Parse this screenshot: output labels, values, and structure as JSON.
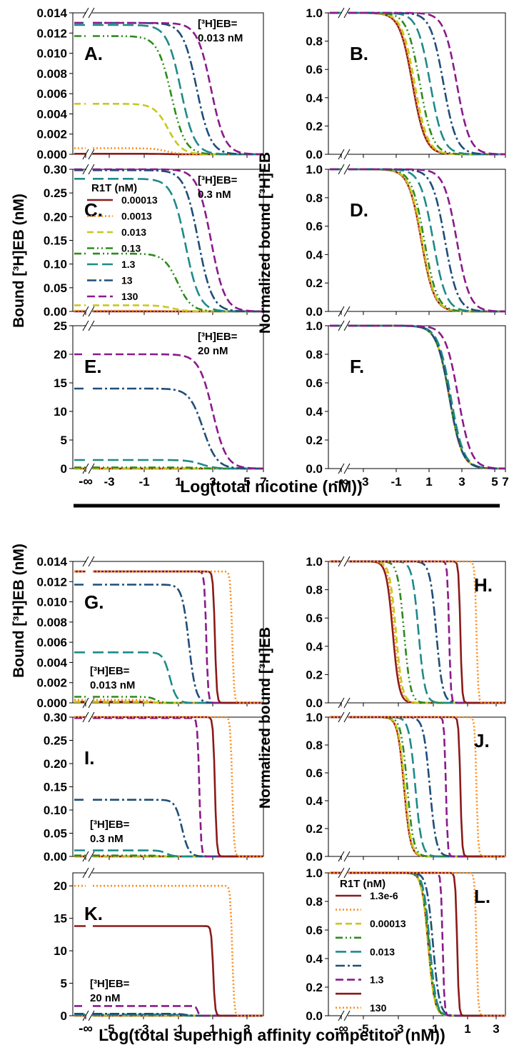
{
  "axis_labels": {
    "top_x": "Log(total nicotine (nM))",
    "bottom_x": "Log(total superhigh affinity competitor (nM))",
    "y_left": "Bound [³H]EB (nM)",
    "y_right": "Normalized bound [³H]EB"
  },
  "legend_top": {
    "title": "R1T (nM)",
    "entries": [
      "0.00013",
      "0.0013",
      "0.013",
      "0.13",
      "1.3",
      "13",
      "130"
    ]
  },
  "legend_bottom": {
    "title": "R1T (nM)",
    "entries": [
      "1.3e-6",
      "",
      "0.00013",
      "",
      "0.013",
      "",
      "1.3",
      "",
      "130"
    ]
  },
  "series_colors": {
    "top": [
      "#8b1a1a",
      "#ff8c1a",
      "#c8c81e",
      "#2e8b1e",
      "#1f8a8a",
      "#1f4e79",
      "#8b1a8b"
    ],
    "bottom": [
      "#8b1a1a",
      "#ff8c1a",
      "#c8c81e",
      "#2e8b1e",
      "#1f8a8a",
      "#1f4e79",
      "#8b1a8b",
      "#8b1a1a",
      "#ff8c1a"
    ]
  },
  "chart_data": [
    {
      "panel": "A.",
      "type": "line",
      "ylim": [
        0,
        0.014
      ],
      "yticks": [
        "0.000",
        "0.002",
        "0.004",
        "0.006",
        "0.008",
        "0.010",
        "0.012",
        "0.014"
      ],
      "xticks": [
        "-∞",
        "-3",
        "-1",
        "1",
        "3",
        "5",
        "7"
      ],
      "annotation": [
        "[³H]EB=",
        "0.013 nM"
      ],
      "series_params": [
        {
          "plateau": 5e-05,
          "ic50_log": 0.8
        },
        {
          "plateau": 0.0006,
          "ic50_log": 0.9
        },
        {
          "plateau": 0.005,
          "ic50_log": 1.0
        },
        {
          "plateau": 0.0117,
          "ic50_log": 1.2
        },
        {
          "plateau": 0.0128,
          "ic50_log": 1.8
        },
        {
          "plateau": 0.013,
          "ic50_log": 2.8
        },
        {
          "plateau": 0.013,
          "ic50_log": 3.7
        }
      ]
    },
    {
      "panel": "B.",
      "type": "line",
      "ylim": [
        0,
        1
      ],
      "yticks": [
        "0.0",
        "0.2",
        "0.4",
        "0.6",
        "0.8",
        "1.0"
      ],
      "xticks": [
        "-∞",
        "-3",
        "-1",
        "1",
        "3",
        "5",
        "7"
      ],
      "series_params": [
        {
          "plateau": 1,
          "ic50_log": 0.7
        },
        {
          "plateau": 1,
          "ic50_log": 0.75
        },
        {
          "plateau": 1,
          "ic50_log": 0.85
        },
        {
          "plateau": 1,
          "ic50_log": 1.2
        },
        {
          "plateau": 1,
          "ic50_log": 1.9
        },
        {
          "plateau": 1,
          "ic50_log": 2.8
        },
        {
          "plateau": 1,
          "ic50_log": 3.7
        }
      ]
    },
    {
      "panel": "C.",
      "type": "line",
      "ylim": [
        0,
        0.3
      ],
      "yticks": [
        "0.00",
        "0.05",
        "0.10",
        "0.15",
        "0.20",
        "0.25",
        "0.30"
      ],
      "xticks": [
        "-∞",
        "-3",
        "-1",
        "1",
        "3",
        "5",
        "7"
      ],
      "annotation": [
        "[³H]EB=",
        "0.3 nM"
      ],
      "series_params": [
        {
          "plateau": 0.0001,
          "ic50_log": 1.2
        },
        {
          "plateau": 0.0013,
          "ic50_log": 1.2
        },
        {
          "plateau": 0.013,
          "ic50_log": 1.3
        },
        {
          "plateau": 0.122,
          "ic50_log": 1.6
        },
        {
          "plateau": 0.28,
          "ic50_log": 2.1
        },
        {
          "plateau": 0.298,
          "ic50_log": 2.9
        },
        {
          "plateau": 0.3,
          "ic50_log": 3.7
        }
      ]
    },
    {
      "panel": "D.",
      "type": "line",
      "ylim": [
        0,
        1
      ],
      "yticks": [
        "0.0",
        "0.2",
        "0.4",
        "0.6",
        "0.8",
        "1.0"
      ],
      "xticks": [
        "-∞",
        "-3",
        "-1",
        "1",
        "3",
        "5",
        "7"
      ],
      "series_params": [
        {
          "plateau": 1,
          "ic50_log": 1.3
        },
        {
          "plateau": 1,
          "ic50_log": 1.3
        },
        {
          "plateau": 1,
          "ic50_log": 1.35
        },
        {
          "plateau": 1,
          "ic50_log": 1.5
        },
        {
          "plateau": 1,
          "ic50_log": 2.1
        },
        {
          "plateau": 1,
          "ic50_log": 2.9
        },
        {
          "plateau": 1,
          "ic50_log": 3.7
        }
      ]
    },
    {
      "panel": "E.",
      "type": "line",
      "ylim": [
        0,
        25
      ],
      "yticks": [
        "0",
        "5",
        "10",
        "15",
        "20",
        "25"
      ],
      "xticks": [
        "-∞",
        "-3",
        "-1",
        "1",
        "3",
        "5",
        "7"
      ],
      "annotation": [
        "[³H]EB=",
        "20 nM"
      ],
      "series_params": [
        {
          "plateau": 0.01,
          "ic50_log": 3.0
        },
        {
          "plateau": 0.02,
          "ic50_log": 3.0
        },
        {
          "plateau": 0.05,
          "ic50_log": 3.0
        },
        {
          "plateau": 0.2,
          "ic50_log": 3.0
        },
        {
          "plateau": 1.5,
          "ic50_log": 3.1
        },
        {
          "plateau": 14,
          "ic50_log": 3.2
        },
        {
          "plateau": 20,
          "ic50_log": 3.8
        }
      ]
    },
    {
      "panel": "F.",
      "type": "line",
      "ylim": [
        0,
        1
      ],
      "yticks": [
        "0.0",
        "0.2",
        "0.4",
        "0.6",
        "0.8",
        "1.0"
      ],
      "xticks": [
        "-∞",
        "-3",
        "-1",
        "1",
        "3",
        "5",
        "7"
      ],
      "series_params": [
        {
          "plateau": 1,
          "ic50_log": 3.2
        },
        {
          "plateau": 1,
          "ic50_log": 3.2
        },
        {
          "plateau": 1,
          "ic50_log": 3.2
        },
        {
          "plateau": 1,
          "ic50_log": 3.2
        },
        {
          "plateau": 1,
          "ic50_log": 3.3
        },
        {
          "plateau": 1,
          "ic50_log": 3.2
        },
        {
          "plateau": 1,
          "ic50_log": 3.8
        }
      ]
    },
    {
      "panel": "G.",
      "type": "line",
      "ylim": [
        0,
        0.014
      ],
      "yticks": [
        "0.000",
        "0.002",
        "0.004",
        "0.006",
        "0.008",
        "0.010",
        "0.012",
        "0.014"
      ],
      "xticks": [
        "-∞",
        "-5",
        "-3",
        "-1",
        "1",
        "3"
      ],
      "annotation": [
        "[³H]EB=",
        "0.013 nM"
      ],
      "series_params": [
        {
          "plateau": 0.0001,
          "ic50_log": -2.5
        },
        {
          "plateau": 0.0003,
          "ic50_log": -2.5
        },
        {
          "plateau": 0.0001,
          "ic50_log": -2.4
        },
        {
          "plateau": 0.0006,
          "ic50_log": -2.2
        },
        {
          "plateau": 0.005,
          "ic50_log": -1.4
        },
        {
          "plateau": 0.0117,
          "ic50_log": -0.3
        },
        {
          "plateau": 0.013,
          "ic50_log": 0.7
        },
        {
          "plateau": 0.013,
          "ic50_log": 1.2
        },
        {
          "plateau": 0.013,
          "ic50_log": 2.2
        }
      ]
    },
    {
      "panel": "H.",
      "type": "line",
      "ylim": [
        0,
        1
      ],
      "yticks": [
        "0.0",
        "0.2",
        "0.4",
        "0.6",
        "0.8",
        "1.0"
      ],
      "xticks": [
        "-∞",
        "-5",
        "-3",
        "-1",
        "1",
        "3"
      ],
      "series_params": [
        {
          "plateau": 1,
          "ic50_log": -3.0
        },
        {
          "plateau": 1,
          "ic50_log": -2.9
        },
        {
          "plateau": 1,
          "ic50_log": -2.8
        },
        {
          "plateau": 1,
          "ic50_log": -2.3
        },
        {
          "plateau": 1,
          "ic50_log": -1.4
        },
        {
          "plateau": 1,
          "ic50_log": -0.3
        },
        {
          "plateau": 1,
          "ic50_log": 0.5
        },
        {
          "plateau": 1,
          "ic50_log": 1.2
        },
        {
          "plateau": 1,
          "ic50_log": 2.2
        }
      ]
    },
    {
      "panel": "I.",
      "type": "line",
      "ylim": [
        0,
        0.3
      ],
      "yticks": [
        "0.00",
        "0.05",
        "0.10",
        "0.15",
        "0.20",
        "0.25",
        "0.30"
      ],
      "xticks": [
        "-∞",
        "-5",
        "-3",
        "-1",
        "1",
        "3"
      ],
      "annotation": [
        "[³H]EB=",
        "0.3 nM"
      ],
      "series_params": [
        {
          "plateau": 0.0001,
          "ic50_log": -2.3
        },
        {
          "plateau": 0.0005,
          "ic50_log": -2.3
        },
        {
          "plateau": 0.001,
          "ic50_log": -2.2
        },
        {
          "plateau": 0.002,
          "ic50_log": -2.0
        },
        {
          "plateau": 0.013,
          "ic50_log": -1.6
        },
        {
          "plateau": 0.122,
          "ic50_log": -0.7
        },
        {
          "plateau": 0.298,
          "ic50_log": 0.3
        },
        {
          "plateau": 0.3,
          "ic50_log": 1.2
        },
        {
          "plateau": 0.3,
          "ic50_log": 2.2
        }
      ]
    },
    {
      "panel": "J.",
      "type": "line",
      "ylim": [
        0,
        1
      ],
      "yticks": [
        "0.0",
        "0.2",
        "0.4",
        "0.6",
        "0.8",
        "1.0"
      ],
      "xticks": [
        "-∞",
        "-5",
        "-3",
        "-1",
        "1",
        "3"
      ],
      "series_params": [
        {
          "plateau": 1,
          "ic50_log": -2.3
        },
        {
          "plateau": 1,
          "ic50_log": -2.3
        },
        {
          "plateau": 1,
          "ic50_log": -2.25
        },
        {
          "plateau": 1,
          "ic50_log": -2.1
        },
        {
          "plateau": 1,
          "ic50_log": -1.6
        },
        {
          "plateau": 1,
          "ic50_log": -0.7
        },
        {
          "plateau": 1,
          "ic50_log": 0.3
        },
        {
          "plateau": 1,
          "ic50_log": 1.2
        },
        {
          "plateau": 1,
          "ic50_log": 2.2
        }
      ]
    },
    {
      "panel": "K.",
      "type": "line",
      "ylim": [
        0,
        22
      ],
      "yticks": [
        "0",
        "5",
        "10",
        "15",
        "20"
      ],
      "xticks": [
        "-∞",
        "-5",
        "-3",
        "-1",
        "1",
        "3"
      ],
      "annotation": [
        "[³H]EB=",
        "20 nM"
      ],
      "series_params": [
        {
          "plateau": 0.01,
          "ic50_log": -0.8
        },
        {
          "plateau": 0.02,
          "ic50_log": -0.8
        },
        {
          "plateau": 0.05,
          "ic50_log": -0.8
        },
        {
          "plateau": 0.1,
          "ic50_log": -0.8
        },
        {
          "plateau": 0.2,
          "ic50_log": -0.8
        },
        {
          "plateau": 0.3,
          "ic50_log": -0.5
        },
        {
          "plateau": 1.5,
          "ic50_log": 0.2
        },
        {
          "plateau": 13.8,
          "ic50_log": 1.1
        },
        {
          "plateau": 20,
          "ic50_log": 2.2
        }
      ]
    },
    {
      "panel": "L.",
      "type": "line",
      "ylim": [
        0,
        1
      ],
      "yticks": [
        "0.0",
        "0.2",
        "0.4",
        "0.6",
        "0.8",
        "1.0"
      ],
      "xticks": [
        "-∞",
        "-5",
        "-3",
        "-1",
        "1",
        "3"
      ],
      "series_params": [
        {
          "plateau": 1,
          "ic50_log": -0.8
        },
        {
          "plateau": 1,
          "ic50_log": -0.8
        },
        {
          "plateau": 1,
          "ic50_log": -0.8
        },
        {
          "plateau": 1,
          "ic50_log": -0.75
        },
        {
          "plateau": 1,
          "ic50_log": -0.7
        },
        {
          "plateau": 1,
          "ic50_log": -0.5
        },
        {
          "plateau": 1,
          "ic50_log": 0.1
        },
        {
          "plateau": 1,
          "ic50_log": 1.0
        },
        {
          "plateau": 1,
          "ic50_log": 2.2
        }
      ]
    }
  ]
}
